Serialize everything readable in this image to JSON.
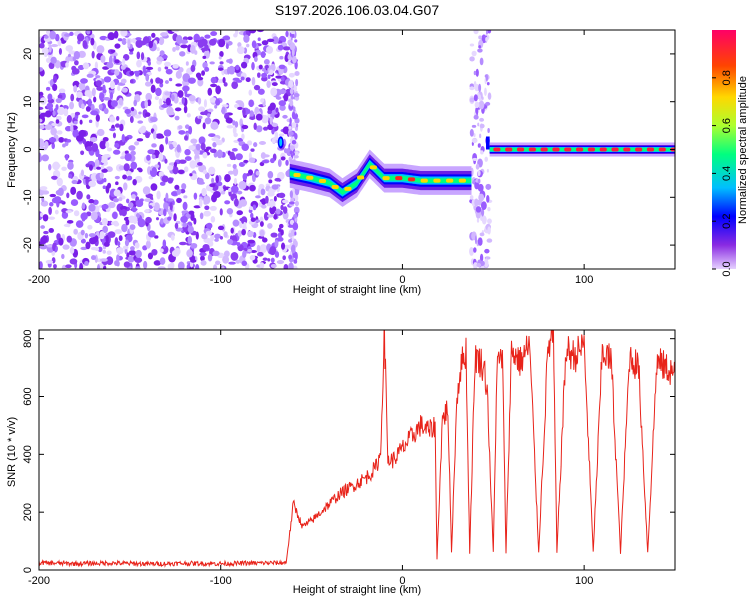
{
  "title": "S197.2026.106.03.04.G07",
  "chart_data": [
    {
      "type": "heatmap",
      "xlabel": "Height of straight line (km)",
      "ylabel": "Frequency (Hz)",
      "xlim": [
        -200,
        150
      ],
      "ylim": [
        -25,
        25
      ],
      "xticks": [
        -200,
        -100,
        0,
        100
      ],
      "yticks": [
        -20,
        -10,
        0,
        10,
        20
      ],
      "colorbar": {
        "label": "Normalized spectral amplitude",
        "range": [
          0,
          1
        ],
        "ticks": [
          "0.0",
          "0.2",
          "0.4",
          "0.6",
          "0.8"
        ],
        "colors": [
          "#e6d2ff",
          "#8a2be2",
          "#0000ff",
          "#00bfff",
          "#00ff7f",
          "#adff2f",
          "#ffd700",
          "#ff4500",
          "#ff0066"
        ]
      },
      "regions": [
        {
          "name": "noise",
          "x": [
            -200,
            -62
          ],
          "freq_spread": 25,
          "amplitude": 0.1
        },
        {
          "name": "early-echo",
          "x": [
            -62,
            38
          ],
          "freq_path_hz": [
            [
              -62,
              -5
            ],
            [
              -50,
              -6
            ],
            [
              -40,
              -7
            ],
            [
              -33,
              -9
            ],
            [
              -25,
              -7
            ],
            [
              -18,
              -3
            ],
            [
              -10,
              -6
            ],
            [
              0,
              -6
            ],
            [
              10,
              -6.5
            ],
            [
              20,
              -6.5
            ],
            [
              38,
              -6.5
            ]
          ],
          "amplitude": 0.8
        },
        {
          "name": "direct-signal",
          "x": [
            48,
            150
          ],
          "freq_hz": 0,
          "amplitude": 0.95
        }
      ]
    },
    {
      "type": "line",
      "xlabel": "Height of straight line (km)",
      "ylabel": "SNR (10 * v/v)",
      "xlim": [
        -200,
        150
      ],
      "ylim": [
        0,
        830
      ],
      "xticks": [
        -200,
        -100,
        0,
        100
      ],
      "yticks": [
        0,
        200,
        400,
        600,
        800
      ],
      "series": [
        {
          "name": "SNR",
          "color": "#e8231a",
          "x": [
            -200,
            -180,
            -160,
            -140,
            -120,
            -100,
            -80,
            -64,
            -60,
            -55,
            -50,
            -45,
            -40,
            -35,
            -30,
            -25,
            -20,
            -15,
            -12,
            -10,
            -8,
            -5,
            0,
            5,
            10,
            15,
            18,
            19,
            22,
            25,
            27,
            30,
            32,
            35,
            37,
            40,
            43,
            45,
            47,
            48,
            50,
            52,
            55,
            57,
            60,
            65,
            70,
            75,
            80,
            83,
            85,
            90,
            95,
            100,
            105,
            110,
            115,
            120,
            125,
            130,
            135,
            140,
            145,
            150
          ],
          "values": [
            25,
            22,
            24,
            21,
            23,
            22,
            24,
            25,
            230,
            150,
            170,
            200,
            230,
            260,
            280,
            300,
            320,
            350,
            400,
            830,
            380,
            380,
            420,
            460,
            500,
            480,
            500,
            40,
            520,
            560,
            60,
            600,
            700,
            760,
            60,
            740,
            720,
            700,
            600,
            380,
            60,
            700,
            740,
            60,
            760,
            720,
            780,
            60,
            760,
            820,
            60,
            760,
            740,
            780,
            60,
            760,
            720,
            60,
            740,
            700,
            60,
            720,
            700,
            680
          ]
        }
      ]
    }
  ]
}
